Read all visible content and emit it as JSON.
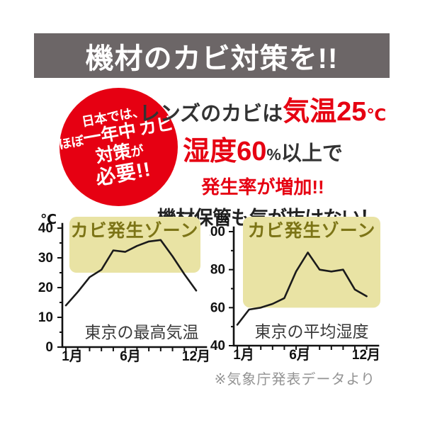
{
  "banner": {
    "title": "機材のカビ対策を!!"
  },
  "badge": {
    "line1": "日本では、",
    "line2_small": "ほぼ",
    "line2_large": "一年中",
    "line3_large": "カビ対策",
    "line3_small": "が",
    "line4": "必要!!"
  },
  "headline": {
    "line1_dark": "レンズのカビは",
    "line1_red": "気温25",
    "line1_unit": "℃",
    "line2_red": "湿度60",
    "line2_unit": "%",
    "line2_dark": "以上で",
    "line3": "発生率が増加!!",
    "line4": "機材保管も気が抜けない！"
  },
  "footnote": "※気象庁発表データより",
  "colors": {
    "red": "#e60012",
    "banner_bg": "#6c6667",
    "zone_bg": "#e9e3a4",
    "zone_text": "#7c7416",
    "line": "#1b1b1b",
    "axis": "#111111",
    "dark_text": "#333333",
    "black_text": "#222222",
    "note_gray": "#939393",
    "series_label_text": "#3a3a3a"
  },
  "chart_data": [
    {
      "type": "line",
      "name": "tokyo-max-temperature",
      "unit": "℃",
      "zone_label": "カビ発生ゾーン",
      "series_label": "東京の最高気温",
      "x": [
        1,
        2,
        3,
        4,
        5,
        6,
        7,
        8,
        9,
        10,
        11,
        12
      ],
      "x_tick_labels": [
        {
          "month": 1,
          "label": "1月"
        },
        {
          "month": 6,
          "label": "6月"
        },
        {
          "month": 12,
          "label": "12月"
        }
      ],
      "values": [
        14,
        18.5,
        23.5,
        26,
        32.5,
        32,
        34,
        35.5,
        36,
        30.5,
        24.5,
        19
      ],
      "ylim": [
        0,
        40
      ],
      "yticks": [
        0,
        10,
        20,
        30,
        40
      ],
      "yminor_step": 5,
      "zone_min": 25,
      "grid": false,
      "legend": false
    },
    {
      "type": "line",
      "name": "tokyo-average-humidity",
      "unit": "%",
      "zone_label": "カビ発生ゾーン",
      "series_label": "東京の平均湿度",
      "x": [
        1,
        2,
        3,
        4,
        5,
        6,
        7,
        8,
        9,
        10,
        11,
        12
      ],
      "x_tick_labels": [
        {
          "month": 1,
          "label": "1月"
        },
        {
          "month": 6,
          "label": "6月"
        },
        {
          "month": 12,
          "label": "12月"
        }
      ],
      "values": [
        51,
        59,
        60,
        62,
        65,
        79,
        89,
        80,
        79,
        80,
        69.5,
        66
      ],
      "ylim": [
        40,
        100
      ],
      "yticks": [
        40,
        60,
        80,
        100
      ],
      "yminor_step": 10,
      "zone_min": 60,
      "grid": false,
      "legend": false
    }
  ]
}
